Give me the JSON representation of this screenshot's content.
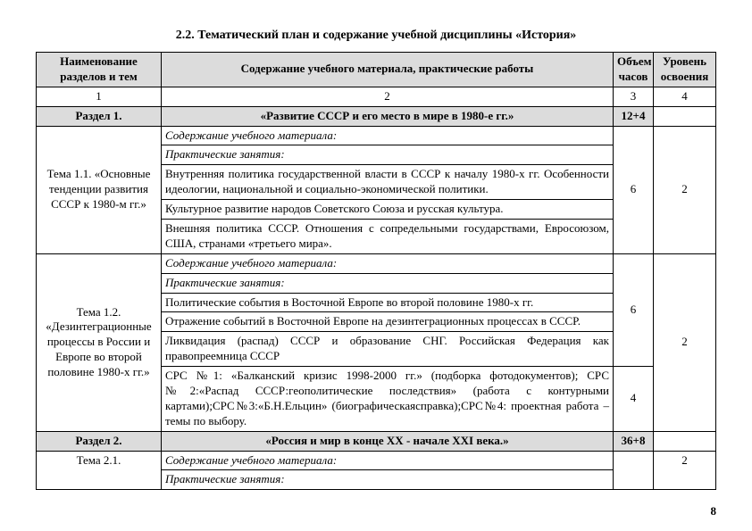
{
  "title": "2.2. Тематический план и содержание учебной дисциплины «История»",
  "header": {
    "col1": "Наименование разделов и тем",
    "col2": "Содержание учебного материала, практические работы",
    "col3": "Объем часов",
    "col4": "Уровень освоения"
  },
  "num": {
    "c1": "1",
    "c2": "2",
    "c3": "3",
    "c4": "4"
  },
  "section1": {
    "name": "Раздел 1.",
    "title": "«Развитие СССР  и его место в мире в 1980-е гг.»",
    "hours": "12+4"
  },
  "topic11": {
    "name": "Тема 1.1.\n«Основные тенденции развития СССР\nк 1980-м гг.»",
    "l1": "Содержание учебного материала:",
    "l2": "Практические занятия:",
    "r1": "Внутренняя политика государственной власти в СССР к началу 1980-х гг. Особенности идеологии, национальной и социально-экономической политики.",
    "r2": "Культурное развитие народов Советского Союза и русская культура.",
    "r3": "Внешняя политика СССР. Отношения с сопредельными государствами, Евросоюзом, США, странами «третьего мира».",
    "hours": "6",
    "level": "2"
  },
  "topic12": {
    "name": "Тема 1.2.\n«Дезинтеграционные процессы\nв России и Европе во второй половине 1980-х гг.»",
    "l1": "Содержание учебного материала:",
    "l2": "Практические занятия:",
    "r1": "Политические события в Восточной Европе во второй половине 1980-х гг.",
    "r2": "Отражение событий в Восточной Европе на дезинтеграционных процессах в СССР.",
    "r3": "Ликвидация (распад) СССР и образование СНГ. Российская Федерация как правопреемница СССР",
    "r4": "СРС №1: «Балканский кризис 1998-2000 гг.» (подборка фотодокументов); СРС №2:«Распад СССР:геополитические последствия» (работа с контурными картами);СРС№3:«Б.Н.Ельцин» (биографическаясправка);СРС№4: проектная работа –темы по выбору.",
    "hours1": "6",
    "hours2": "4",
    "level": "2"
  },
  "section2": {
    "name": "Раздел 2.",
    "title": "«Россия и мир в конце XX - начале XXI века.»",
    "hours": "36+8"
  },
  "topic21": {
    "name": "Тема 2.1.",
    "l1": "Содержание учебного материала:",
    "l2": "Практические занятия:",
    "level": "2"
  },
  "pagenum": "8"
}
